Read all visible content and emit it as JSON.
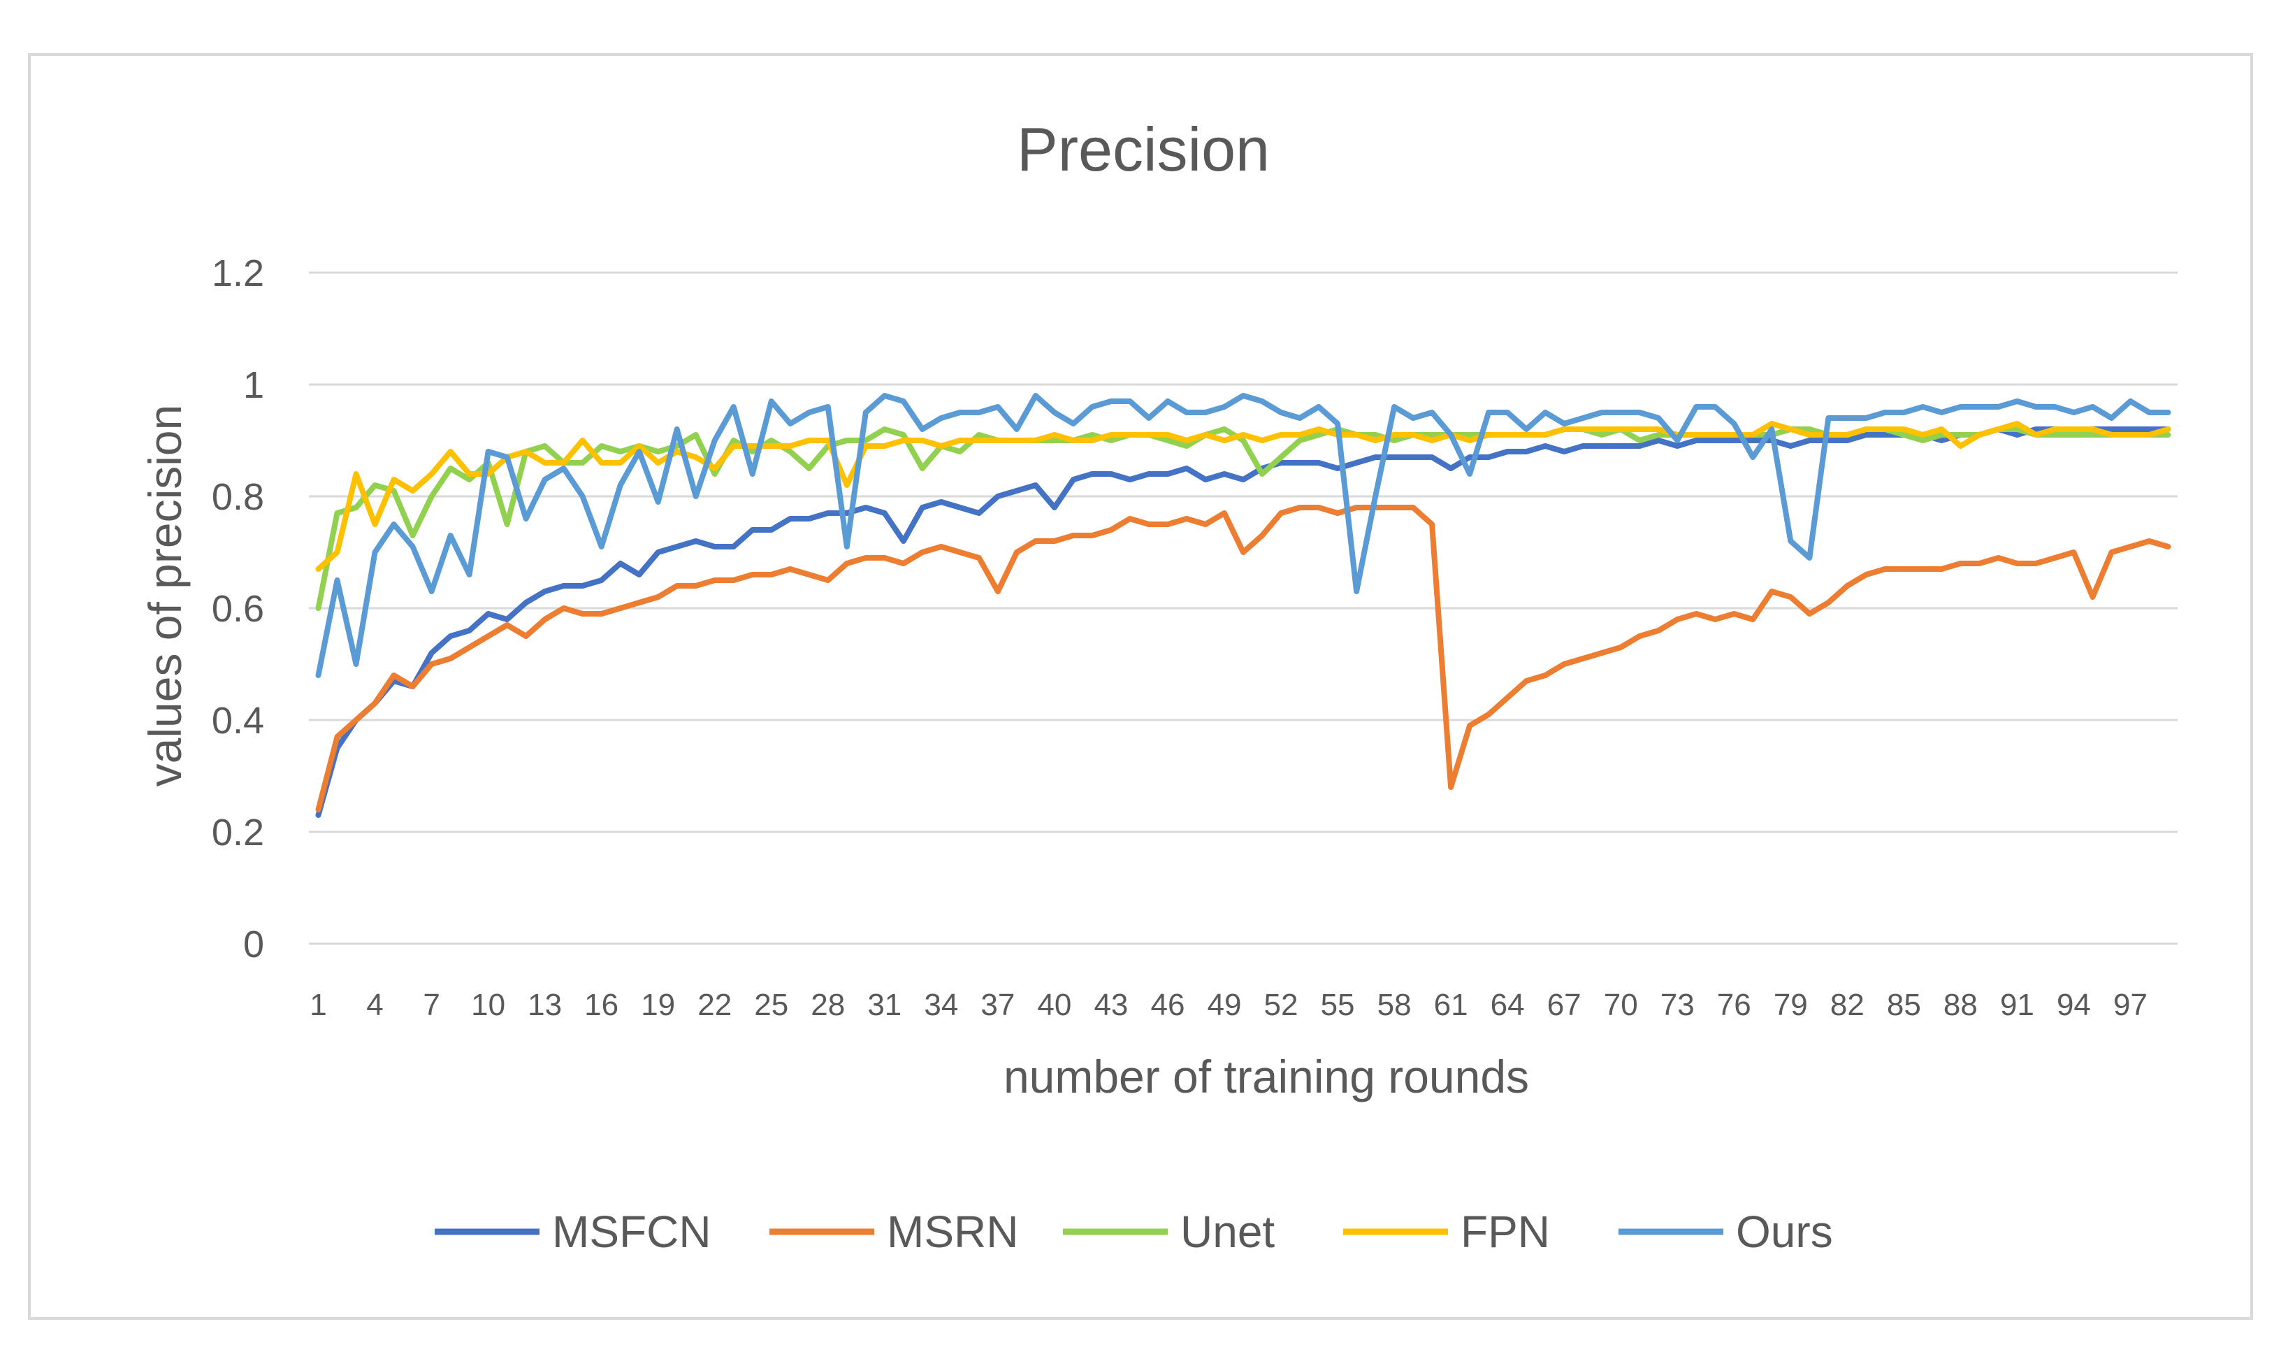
{
  "chart_data": {
    "type": "line",
    "title": "Precision",
    "xlabel": "number of training rounds",
    "ylabel": "values of precision",
    "ylim": [
      0,
      1.2
    ],
    "yticks": [
      "0",
      "0.2",
      "0.4",
      "0.6",
      "0.8",
      "1",
      "1.2"
    ],
    "xtick_labels": [
      "1",
      "4",
      "7",
      "10",
      "13",
      "16",
      "19",
      "22",
      "25",
      "28",
      "31",
      "34",
      "37",
      "40",
      "43",
      "46",
      "49",
      "52",
      "55",
      "58",
      "61",
      "64",
      "67",
      "70",
      "73",
      "76",
      "79",
      "82",
      "85",
      "88",
      "91",
      "94",
      "97"
    ],
    "grid": true,
    "legend_position": "bottom",
    "x": [
      1,
      2,
      3,
      4,
      5,
      6,
      7,
      8,
      9,
      10,
      11,
      12,
      13,
      14,
      15,
      16,
      17,
      18,
      19,
      20,
      21,
      22,
      23,
      24,
      25,
      26,
      27,
      28,
      29,
      30,
      31,
      32,
      33,
      34,
      35,
      36,
      37,
      38,
      39,
      40,
      41,
      42,
      43,
      44,
      45,
      46,
      47,
      48,
      49,
      50,
      51,
      52,
      53,
      54,
      55,
      56,
      57,
      58,
      59,
      60,
      61,
      62,
      63,
      64,
      65,
      66,
      67,
      68,
      69,
      70,
      71,
      72,
      73,
      74,
      75,
      76,
      77,
      78,
      79,
      80,
      81,
      82,
      83,
      84,
      85,
      86,
      87,
      88,
      89,
      90,
      91,
      92,
      93,
      94,
      95,
      96,
      97,
      98,
      99
    ],
    "series": [
      {
        "name": "MSFCN",
        "color": "#4472c4",
        "values": [
          0.23,
          0.35,
          0.4,
          0.43,
          0.47,
          0.46,
          0.52,
          0.55,
          0.56,
          0.59,
          0.58,
          0.61,
          0.63,
          0.64,
          0.64,
          0.65,
          0.68,
          0.66,
          0.7,
          0.71,
          0.72,
          0.71,
          0.71,
          0.74,
          0.74,
          0.76,
          0.76,
          0.77,
          0.77,
          0.78,
          0.77,
          0.72,
          0.78,
          0.79,
          0.78,
          0.77,
          0.8,
          0.81,
          0.82,
          0.78,
          0.83,
          0.84,
          0.84,
          0.83,
          0.84,
          0.84,
          0.85,
          0.83,
          0.84,
          0.83,
          0.85,
          0.86,
          0.86,
          0.86,
          0.85,
          0.86,
          0.87,
          0.87,
          0.87,
          0.87,
          0.85,
          0.87,
          0.87,
          0.88,
          0.88,
          0.89,
          0.88,
          0.89,
          0.89,
          0.89,
          0.89,
          0.9,
          0.89,
          0.9,
          0.9,
          0.9,
          0.9,
          0.9,
          0.89,
          0.9,
          0.9,
          0.9,
          0.91,
          0.91,
          0.91,
          0.91,
          0.9,
          0.91,
          0.91,
          0.92,
          0.91,
          0.92,
          0.92,
          0.92,
          0.92,
          0.92,
          0.92,
          0.92,
          0.92
        ]
      },
      {
        "name": "MSRN",
        "color": "#ed7d31",
        "values": [
          0.24,
          0.37,
          0.4,
          0.43,
          0.48,
          0.46,
          0.5,
          0.51,
          0.53,
          0.55,
          0.57,
          0.55,
          0.58,
          0.6,
          0.59,
          0.59,
          0.6,
          0.61,
          0.62,
          0.64,
          0.64,
          0.65,
          0.65,
          0.66,
          0.66,
          0.67,
          0.66,
          0.65,
          0.68,
          0.69,
          0.69,
          0.68,
          0.7,
          0.71,
          0.7,
          0.69,
          0.63,
          0.7,
          0.72,
          0.72,
          0.73,
          0.73,
          0.74,
          0.76,
          0.75,
          0.75,
          0.76,
          0.75,
          0.77,
          0.7,
          0.73,
          0.77,
          0.78,
          0.78,
          0.77,
          0.78,
          0.78,
          0.78,
          0.78,
          0.75,
          0.28,
          0.39,
          0.41,
          0.44,
          0.47,
          0.48,
          0.5,
          0.51,
          0.52,
          0.53,
          0.55,
          0.56,
          0.58,
          0.59,
          0.58,
          0.59,
          0.58,
          0.63,
          0.62,
          0.59,
          0.61,
          0.64,
          0.66,
          0.67,
          0.67,
          0.67,
          0.67,
          0.68,
          0.68,
          0.69,
          0.68,
          0.68,
          0.69,
          0.7,
          0.62,
          0.7,
          0.71,
          0.72,
          0.71
        ]
      },
      {
        "name": "Unet",
        "color": "#92d050",
        "values": [
          0.6,
          0.77,
          0.78,
          0.82,
          0.81,
          0.73,
          0.8,
          0.85,
          0.83,
          0.86,
          0.75,
          0.88,
          0.89,
          0.86,
          0.86,
          0.89,
          0.88,
          0.89,
          0.88,
          0.89,
          0.91,
          0.84,
          0.9,
          0.88,
          0.9,
          0.88,
          0.85,
          0.89,
          0.9,
          0.9,
          0.92,
          0.91,
          0.85,
          0.89,
          0.88,
          0.91,
          0.9,
          0.9,
          0.9,
          0.9,
          0.9,
          0.91,
          0.9,
          0.91,
          0.91,
          0.9,
          0.89,
          0.91,
          0.92,
          0.9,
          0.84,
          0.87,
          0.9,
          0.91,
          0.92,
          0.91,
          0.91,
          0.9,
          0.91,
          0.91,
          0.91,
          0.91,
          0.91,
          0.91,
          0.91,
          0.91,
          0.92,
          0.92,
          0.91,
          0.92,
          0.9,
          0.91,
          0.91,
          0.91,
          0.91,
          0.91,
          0.91,
          0.91,
          0.92,
          0.92,
          0.91,
          0.91,
          0.92,
          0.92,
          0.91,
          0.9,
          0.91,
          0.91,
          0.91,
          0.92,
          0.92,
          0.91,
          0.91,
          0.91,
          0.91,
          0.91,
          0.91,
          0.91,
          0.91
        ]
      },
      {
        "name": "FPN",
        "color": "#ffc000",
        "values": [
          0.67,
          0.7,
          0.84,
          0.75,
          0.83,
          0.81,
          0.84,
          0.88,
          0.84,
          0.84,
          0.87,
          0.88,
          0.86,
          0.86,
          0.9,
          0.86,
          0.86,
          0.89,
          0.86,
          0.88,
          0.87,
          0.85,
          0.89,
          0.89,
          0.89,
          0.89,
          0.9,
          0.9,
          0.82,
          0.89,
          0.89,
          0.9,
          0.9,
          0.89,
          0.9,
          0.9,
          0.9,
          0.9,
          0.9,
          0.91,
          0.9,
          0.9,
          0.91,
          0.91,
          0.91,
          0.91,
          0.9,
          0.91,
          0.9,
          0.91,
          0.9,
          0.91,
          0.91,
          0.92,
          0.91,
          0.91,
          0.9,
          0.91,
          0.91,
          0.9,
          0.91,
          0.9,
          0.91,
          0.91,
          0.91,
          0.91,
          0.92,
          0.92,
          0.92,
          0.92,
          0.92,
          0.92,
          0.91,
          0.91,
          0.91,
          0.91,
          0.91,
          0.93,
          0.92,
          0.91,
          0.91,
          0.91,
          0.92,
          0.92,
          0.92,
          0.91,
          0.92,
          0.89,
          0.91,
          0.92,
          0.93,
          0.91,
          0.92,
          0.92,
          0.92,
          0.91,
          0.91,
          0.91,
          0.92
        ]
      },
      {
        "name": "Ours",
        "color": "#5b9bd5",
        "values": [
          0.48,
          0.65,
          0.5,
          0.7,
          0.75,
          0.71,
          0.63,
          0.73,
          0.66,
          0.88,
          0.87,
          0.76,
          0.83,
          0.85,
          0.8,
          0.71,
          0.82,
          0.88,
          0.79,
          0.92,
          0.8,
          0.9,
          0.96,
          0.84,
          0.97,
          0.93,
          0.95,
          0.96,
          0.71,
          0.95,
          0.98,
          0.97,
          0.92,
          0.94,
          0.95,
          0.95,
          0.96,
          0.92,
          0.98,
          0.95,
          0.93,
          0.96,
          0.97,
          0.97,
          0.94,
          0.97,
          0.95,
          0.95,
          0.96,
          0.98,
          0.97,
          0.95,
          0.94,
          0.96,
          0.93,
          0.63,
          0.8,
          0.96,
          0.94,
          0.95,
          0.91,
          0.84,
          0.95,
          0.95,
          0.92,
          0.95,
          0.93,
          0.94,
          0.95,
          0.95,
          0.95,
          0.94,
          0.9,
          0.96,
          0.96,
          0.93,
          0.87,
          0.92,
          0.72,
          0.69,
          0.94,
          0.94,
          0.94,
          0.95,
          0.95,
          0.96,
          0.95,
          0.96,
          0.96,
          0.96,
          0.97,
          0.96,
          0.96,
          0.95,
          0.96,
          0.94,
          0.97,
          0.95,
          0.95
        ]
      }
    ]
  }
}
